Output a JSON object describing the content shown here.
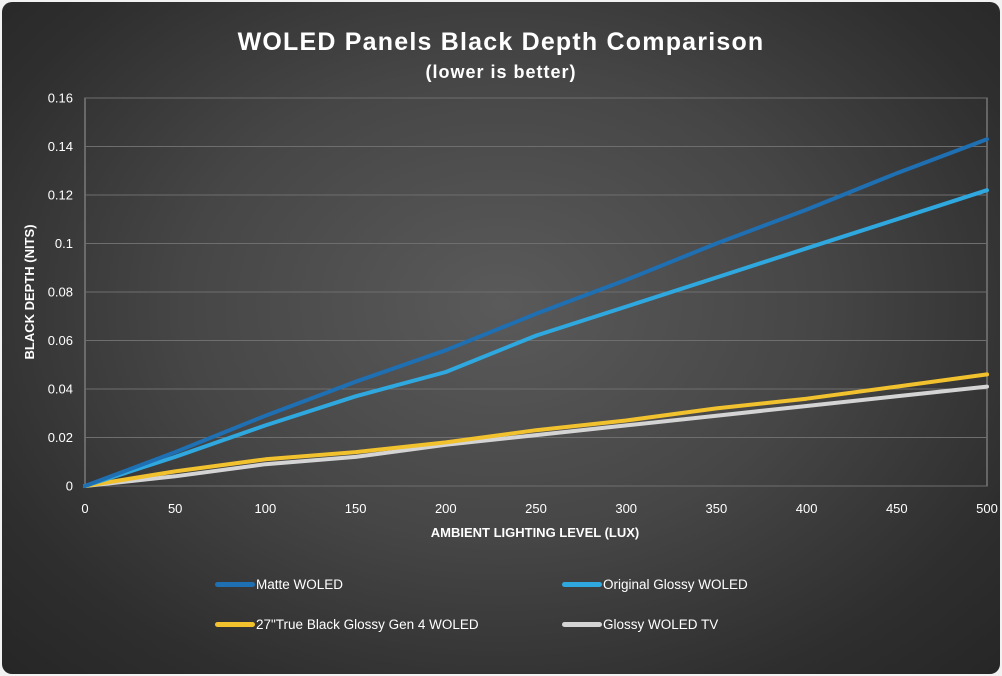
{
  "chart_data": {
    "type": "line",
    "title": "WOLED Panels Black Depth Comparison",
    "subtitle": "(lower is better)",
    "xlabel": "AMBIENT LIGHTING LEVEL (LUX)",
    "ylabel": "BLACK DEPTH (NITS)",
    "xlim": [
      0,
      500
    ],
    "ylim": [
      0,
      0.16
    ],
    "x_ticks": [
      "0",
      "50",
      "100",
      "150",
      "200",
      "250",
      "300",
      "350",
      "400",
      "450",
      "500"
    ],
    "y_ticks": [
      "0",
      "0.02",
      "0.04",
      "0.06",
      "0.08",
      "0.1",
      "0.12",
      "0.14",
      "0.16"
    ],
    "grid": "horizontal",
    "legend_position": "bottom",
    "x": [
      0,
      50,
      100,
      150,
      200,
      250,
      300,
      350,
      400,
      450,
      500
    ],
    "series": [
      {
        "name": "Matte WOLED",
        "color": "#1f6fb3",
        "values": [
          0,
          0.014,
          0.029,
          0.043,
          0.056,
          0.071,
          0.085,
          0.1,
          0.114,
          0.129,
          0.143
        ]
      },
      {
        "name": "Original Glossy WOLED",
        "color": "#2fa8e0",
        "values": [
          0,
          0.012,
          0.025,
          0.037,
          0.047,
          0.062,
          0.074,
          0.086,
          0.098,
          0.11,
          0.122
        ]
      },
      {
        "name": "27\"True Black Glossy Gen 4 WOLED",
        "color": "#f2c12e",
        "values": [
          0,
          0.006,
          0.011,
          0.014,
          0.018,
          0.023,
          0.027,
          0.032,
          0.036,
          0.041,
          0.046
        ]
      },
      {
        "name": "Glossy WOLED TV",
        "color": "#d4d4d4",
        "values": [
          0,
          0.004,
          0.009,
          0.012,
          0.017,
          0.021,
          0.025,
          0.029,
          0.033,
          0.037,
          0.041
        ]
      }
    ]
  }
}
